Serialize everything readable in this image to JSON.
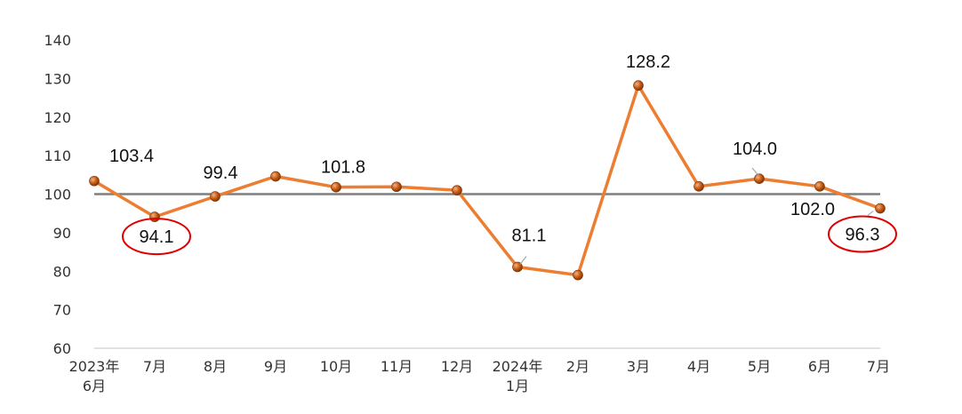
{
  "chart_data": {
    "type": "line",
    "title": "",
    "xlabel": "",
    "ylabel": "",
    "ylim": [
      60,
      140
    ],
    "yticks": [
      60,
      70,
      80,
      90,
      100,
      110,
      120,
      130,
      140
    ],
    "grid": false,
    "reference_line": 100,
    "categories": [
      [
        "2023年",
        "6月"
      ],
      [
        "7月"
      ],
      [
        "8月"
      ],
      [
        "9月"
      ],
      [
        "10月"
      ],
      [
        "11月"
      ],
      [
        "12月"
      ],
      [
        "2024年",
        "1月"
      ],
      [
        "2月"
      ],
      [
        "3月"
      ],
      [
        "4月"
      ],
      [
        "5月"
      ],
      [
        "6月"
      ],
      [
        "7月"
      ]
    ],
    "series": [
      {
        "values": [
          103.4,
          94.1,
          99.4,
          104.6,
          101.8,
          101.9,
          101.0,
          81.1,
          79.0,
          128.2,
          102.0,
          104.0,
          102.0,
          96.3
        ]
      }
    ],
    "data_labels": [
      {
        "index": 0,
        "text": "103.4"
      },
      {
        "index": 1,
        "text": "94.1",
        "circled": true
      },
      {
        "index": 2,
        "text": "99.4"
      },
      {
        "index": 4,
        "text": "101.8"
      },
      {
        "index": 7,
        "text": "81.1"
      },
      {
        "index": 9,
        "text": "128.2"
      },
      {
        "index": 11,
        "text": "104.0"
      },
      {
        "index": 12,
        "text": "102.0"
      },
      {
        "index": 13,
        "text": "96.3",
        "circled": true
      }
    ],
    "colors": {
      "line": "#ED7D31",
      "marker": "#C55A11",
      "reference_line": "#7F7F7F",
      "axis": "#D9D9D9",
      "circle": "#E00000"
    }
  }
}
